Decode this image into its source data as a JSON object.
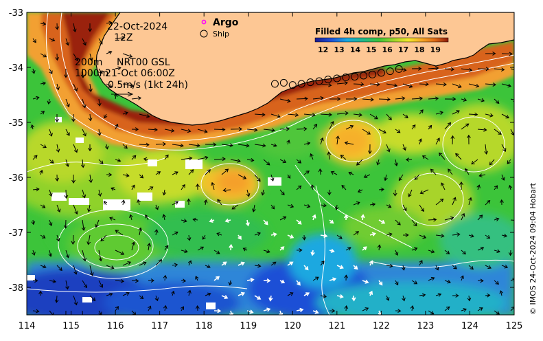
{
  "map": {
    "date": "22-Oct-2024",
    "hour": "12Z",
    "depth_line_1": "200m",
    "product": "NRT00 GSL",
    "depth_line_2": "1000m",
    "altimetry_time": "21-Oct 06:00Z",
    "scale_label": "0.5m/s (1kt 24h)",
    "argo_label": "Argo",
    "ship_label": "Ship",
    "sst_title": "Filled 4h comp, p50, All Sats",
    "credit": "© IMOS 24-Oct-2024 09:04 Hobart",
    "colors": {
      "land": "#fdc794",
      "argo": "#ff00ff",
      "coast": "#000000"
    }
  },
  "chart_data": {
    "type": "heatmap",
    "xlim": [
      114,
      125
    ],
    "ylim": [
      -38.5,
      -33
    ],
    "x_ticks": [
      "114",
      "115",
      "116",
      "117",
      "118",
      "119",
      "120",
      "121",
      "122",
      "123",
      "124",
      "125"
    ],
    "y_ticks": [
      "-33",
      "-34",
      "-35",
      "-36",
      "-37",
      "-38"
    ],
    "colorbar_ticks": [
      "12",
      "13",
      "14",
      "15",
      "16",
      "17",
      "18",
      "19"
    ],
    "colorbar_range": [
      11.5,
      19.8
    ],
    "ship_track": [
      [
        119.6,
        -34.3
      ],
      [
        119.8,
        -34.28
      ],
      [
        120.0,
        -34.32
      ],
      [
        120.2,
        -34.3
      ],
      [
        120.4,
        -34.27
      ],
      [
        120.6,
        -34.25
      ],
      [
        120.8,
        -34.22
      ],
      [
        121.0,
        -34.2
      ],
      [
        121.2,
        -34.18
      ],
      [
        121.4,
        -34.17
      ],
      [
        121.6,
        -34.15
      ],
      [
        121.8,
        -34.13
      ],
      [
        122.0,
        -34.1
      ],
      [
        122.2,
        -34.07
      ],
      [
        122.4,
        -34.03
      ]
    ]
  }
}
